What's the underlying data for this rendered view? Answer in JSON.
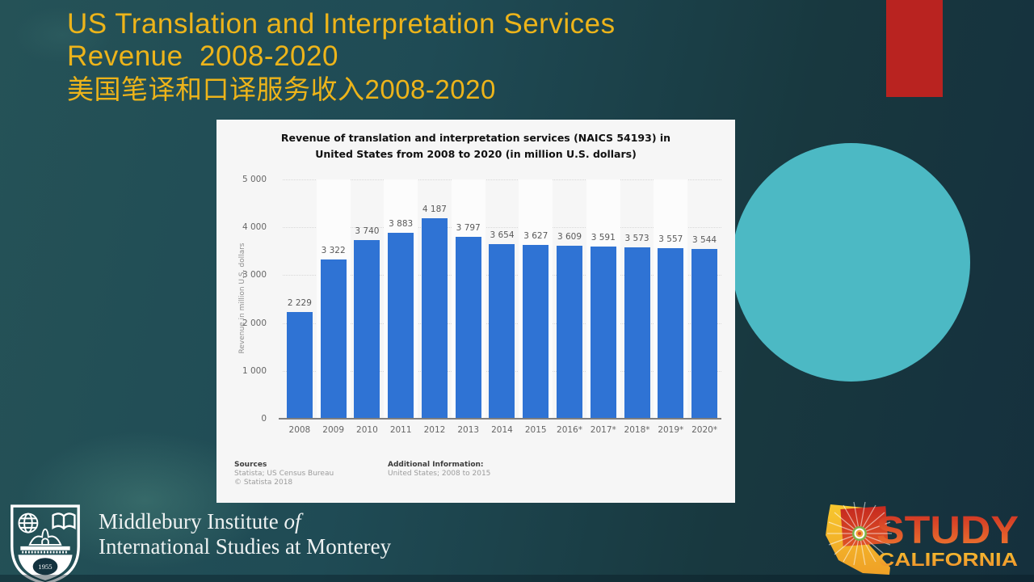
{
  "slide": {
    "title_line1": "US Translation and Interpretation Services",
    "title_line2": "Revenue  2008-2020",
    "title_line3": "美国笔译和口译服务收入2008-2020",
    "accent_colors": {
      "title_gold": "#edb41a",
      "red_rect": "#b92320",
      "teal_circle": "#4cb9c4",
      "bar_blue": "#2f73d4"
    }
  },
  "chart": {
    "title_line1": "Revenue of translation and interpretation services (NAICS 54193) in",
    "title_line2": "United States from 2008 to 2020 (in million U.S. dollars)",
    "footer": {
      "sources_label": "Sources",
      "sources_line1": "Statista; US Census Bureau",
      "sources_line2": "© Statista 2018",
      "additional_label": "Additional Information:",
      "additional_line1": "United States; 2008 to 2015"
    }
  },
  "chart_data": {
    "type": "bar",
    "title": "Revenue of translation and interpretation services (NAICS 54193) in United States from 2008 to 2020 (in million U.S. dollars)",
    "categories": [
      "2008",
      "2009",
      "2010",
      "2011",
      "2012",
      "2013",
      "2014",
      "2015",
      "2016*",
      "2017*",
      "2018*",
      "2019*",
      "2020*"
    ],
    "values": [
      2229,
      3322,
      3740,
      3883,
      4187,
      3797,
      3654,
      3627,
      3609,
      3591,
      3573,
      3557,
      3544
    ],
    "value_labels": [
      "2 229",
      "3 322",
      "3 740",
      "3 883",
      "4 187",
      "3 797",
      "3 654",
      "3 627",
      "3 609",
      "3 591",
      "3 573",
      "3 557",
      "3 544"
    ],
    "xlabel": "",
    "ylabel": "Revenue in million U.S. dollars",
    "ylim": [
      0,
      5000
    ],
    "yticks": [
      {
        "value": 5000,
        "label": "5 000"
      },
      {
        "value": 4000,
        "label": "4 000"
      },
      {
        "value": 3000,
        "label": "3 000"
      },
      {
        "value": 2000,
        "label": "2 000"
      },
      {
        "value": 1000,
        "label": "1 000"
      },
      {
        "value": 0,
        "label": "0"
      }
    ],
    "grid": true,
    "legend": "none",
    "bar_color": "#2f73d4"
  },
  "footer_left": {
    "line1_regular": "Middlebury Institute ",
    "line1_italic": "of",
    "line2": "International Studies at Monterey",
    "shield_year": "1955"
  },
  "footer_right": {
    "word1": "STUDY",
    "word2": "CALIFORNIA"
  }
}
